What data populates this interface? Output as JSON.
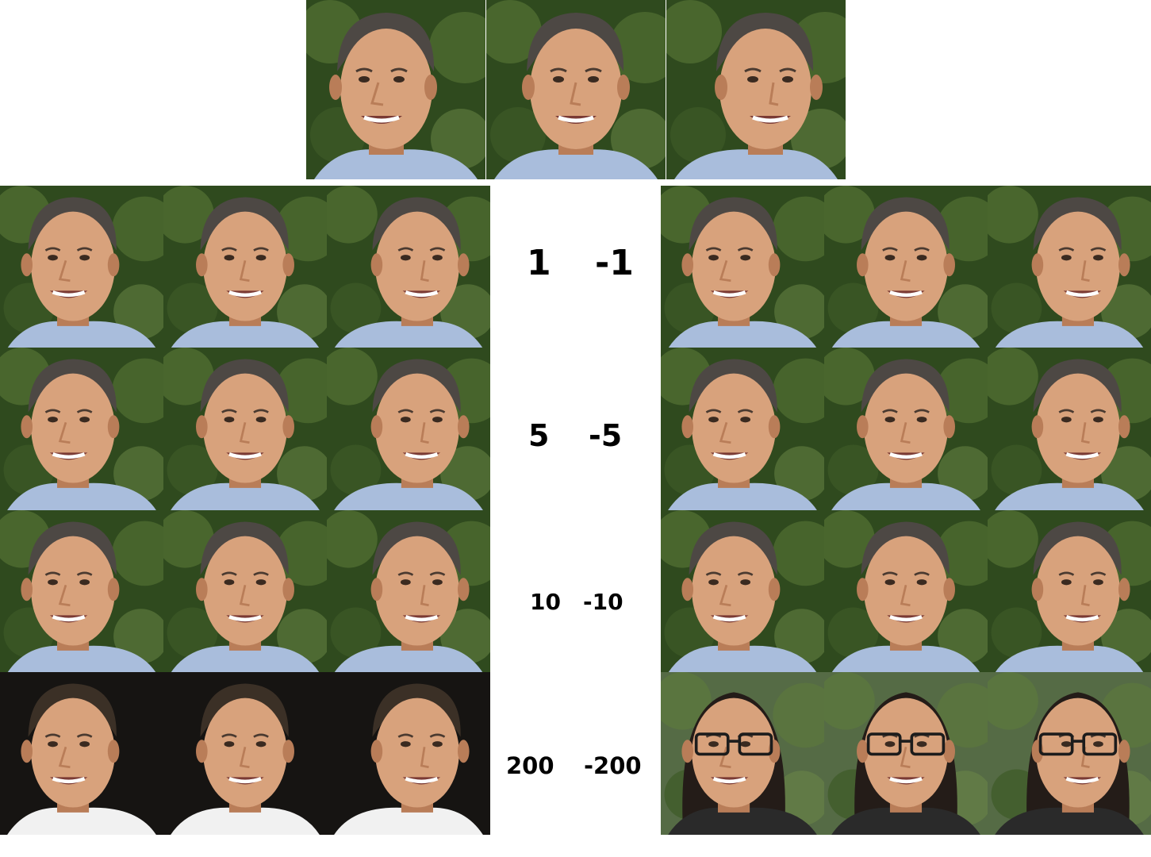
{
  "rows": [
    {
      "pos": "1",
      "neg": "-1"
    },
    {
      "pos": "5",
      "neg": "-5"
    },
    {
      "pos": "10",
      "neg": "-10"
    },
    {
      "pos": "200",
      "neg": "-200"
    }
  ],
  "colors": {
    "foliage_dark": "#2f4a1e",
    "foliage_light": "#5f7d3a",
    "skin": "#d8a27c",
    "skin_shadow": "#b97d58",
    "hair_gray": "#4d4844",
    "shirt": "#a9bddc",
    "dark_bg": "#161412",
    "white_shirt": "#f1f1f1",
    "hair_black": "#241c18",
    "glasses": "#1c1c1c"
  }
}
